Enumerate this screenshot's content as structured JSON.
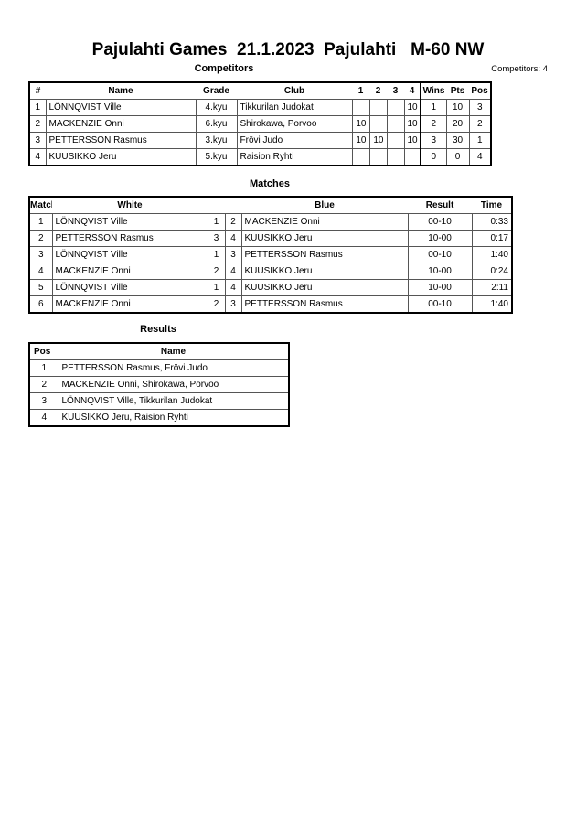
{
  "title": "Pajulahti Games  21.1.2023  Pajulahti   M-60 NW",
  "competitors": {
    "heading": "Competitors",
    "count_label": "Competitors: 4",
    "columns": [
      "#",
      "Name",
      "Grade",
      "Club",
      "1",
      "2",
      "3",
      "4",
      "Wins",
      "Pts",
      "Pos"
    ],
    "rows": [
      [
        "1",
        "LÖNNQVIST Ville",
        "4.kyu",
        "Tikkurilan Judokat",
        "",
        "",
        "",
        "10",
        "1",
        "10",
        "3"
      ],
      [
        "2",
        "MACKENZIE Onni",
        "6.kyu",
        "Shirokawa, Porvoo",
        "10",
        "",
        "",
        "10",
        "2",
        "20",
        "2"
      ],
      [
        "3",
        "PETTERSSON Rasmus",
        "3.kyu",
        "Frövi Judo",
        "10",
        "10",
        "",
        "10",
        "3",
        "30",
        "1"
      ],
      [
        "4",
        "KUUSIKKO Jeru",
        "5.kyu",
        "Raision Ryhti",
        "",
        "",
        "",
        "",
        "0",
        "0",
        "4"
      ]
    ]
  },
  "matches": {
    "heading": "Matches",
    "columns": [
      "Match",
      "White",
      "",
      "",
      "Blue",
      "Result",
      "Time"
    ],
    "rows": [
      [
        "1",
        "LÖNNQVIST Ville",
        "1",
        "2",
        "MACKENZIE Onni",
        "00-10",
        "0:33"
      ],
      [
        "2",
        "PETTERSSON Rasmus",
        "3",
        "4",
        "KUUSIKKO Jeru",
        "10-00",
        "0:17"
      ],
      [
        "3",
        "LÖNNQVIST Ville",
        "1",
        "3",
        "PETTERSSON Rasmus",
        "00-10",
        "1:40"
      ],
      [
        "4",
        "MACKENZIE Onni",
        "2",
        "4",
        "KUUSIKKO Jeru",
        "10-00",
        "0:24"
      ],
      [
        "5",
        "LÖNNQVIST Ville",
        "1",
        "4",
        "KUUSIKKO Jeru",
        "10-00",
        "2:11"
      ],
      [
        "6",
        "MACKENZIE Onni",
        "2",
        "3",
        "PETTERSSON Rasmus",
        "00-10",
        "1:40"
      ]
    ]
  },
  "results": {
    "heading": "Results",
    "columns": [
      "Pos",
      "Name"
    ],
    "rows": [
      [
        "1",
        "PETTERSSON Rasmus, Frövi Judo"
      ],
      [
        "2",
        "MACKENZIE Onni, Shirokawa, Porvoo"
      ],
      [
        "3",
        "LÖNNQVIST Ville, Tikkurilan Judokat"
      ],
      [
        "4",
        "KUUSIKKO Jeru, Raision Ryhti"
      ]
    ]
  }
}
